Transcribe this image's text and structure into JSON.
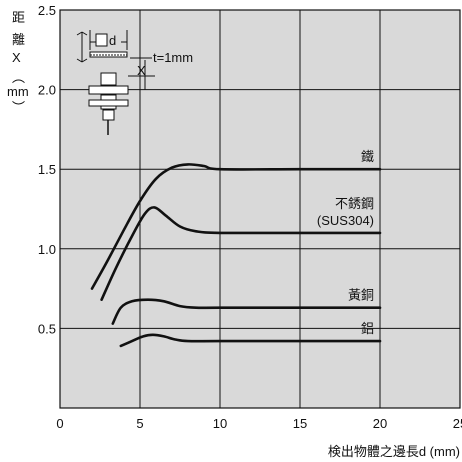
{
  "chart_data": {
    "type": "line",
    "ylabel_lines": [
      "距",
      "離",
      "X",
      "︵",
      "mm",
      "︶"
    ],
    "xlabel": "検出物體之邊長d (mm)",
    "xlim": [
      0,
      25
    ],
    "ylim": [
      0,
      2.5
    ],
    "xticks": [
      0,
      5,
      10,
      15,
      20,
      25
    ],
    "yticks": [
      0.5,
      1.0,
      1.5,
      2.0,
      2.5
    ],
    "ytick_labels": [
      "0.5",
      "1.0",
      "1.5",
      "2.0",
      "2.5"
    ],
    "grid": true,
    "inset": {
      "d_label": "d",
      "x_label": "X",
      "t_label": "t=1mm"
    },
    "series": [
      {
        "name": "鐵",
        "line_color": "#111111",
        "x": [
          2.0,
          3.0,
          4.0,
          5.0,
          6.0,
          7.0,
          8.0,
          9.0,
          10.0,
          15.0,
          20.0
        ],
        "y": [
          0.75,
          0.93,
          1.12,
          1.3,
          1.44,
          1.51,
          1.53,
          1.52,
          1.5,
          1.5,
          1.5
        ]
      },
      {
        "name": "不銹鋼\n(SUS304)",
        "line_color": "#111111",
        "x": [
          2.6,
          3.5,
          4.5,
          5.3,
          5.9,
          6.6,
          7.5,
          8.5,
          10.0,
          15.0,
          20.0
        ],
        "y": [
          0.68,
          0.88,
          1.08,
          1.22,
          1.26,
          1.21,
          1.14,
          1.11,
          1.1,
          1.1,
          1.1
        ]
      },
      {
        "name": "黃銅",
        "line_color": "#111111",
        "x": [
          3.3,
          3.8,
          4.5,
          5.5,
          6.5,
          7.5,
          8.5,
          10.0,
          15.0,
          20.0
        ],
        "y": [
          0.53,
          0.63,
          0.67,
          0.68,
          0.67,
          0.64,
          0.63,
          0.63,
          0.63,
          0.63
        ]
      },
      {
        "name": "鋁",
        "line_color": "#111111",
        "x": [
          3.8,
          4.5,
          5.2,
          5.8,
          6.5,
          7.2,
          8.0,
          10.0,
          15.0,
          20.0
        ],
        "y": [
          0.39,
          0.42,
          0.45,
          0.46,
          0.45,
          0.43,
          0.42,
          0.42,
          0.42,
          0.42
        ]
      }
    ]
  }
}
